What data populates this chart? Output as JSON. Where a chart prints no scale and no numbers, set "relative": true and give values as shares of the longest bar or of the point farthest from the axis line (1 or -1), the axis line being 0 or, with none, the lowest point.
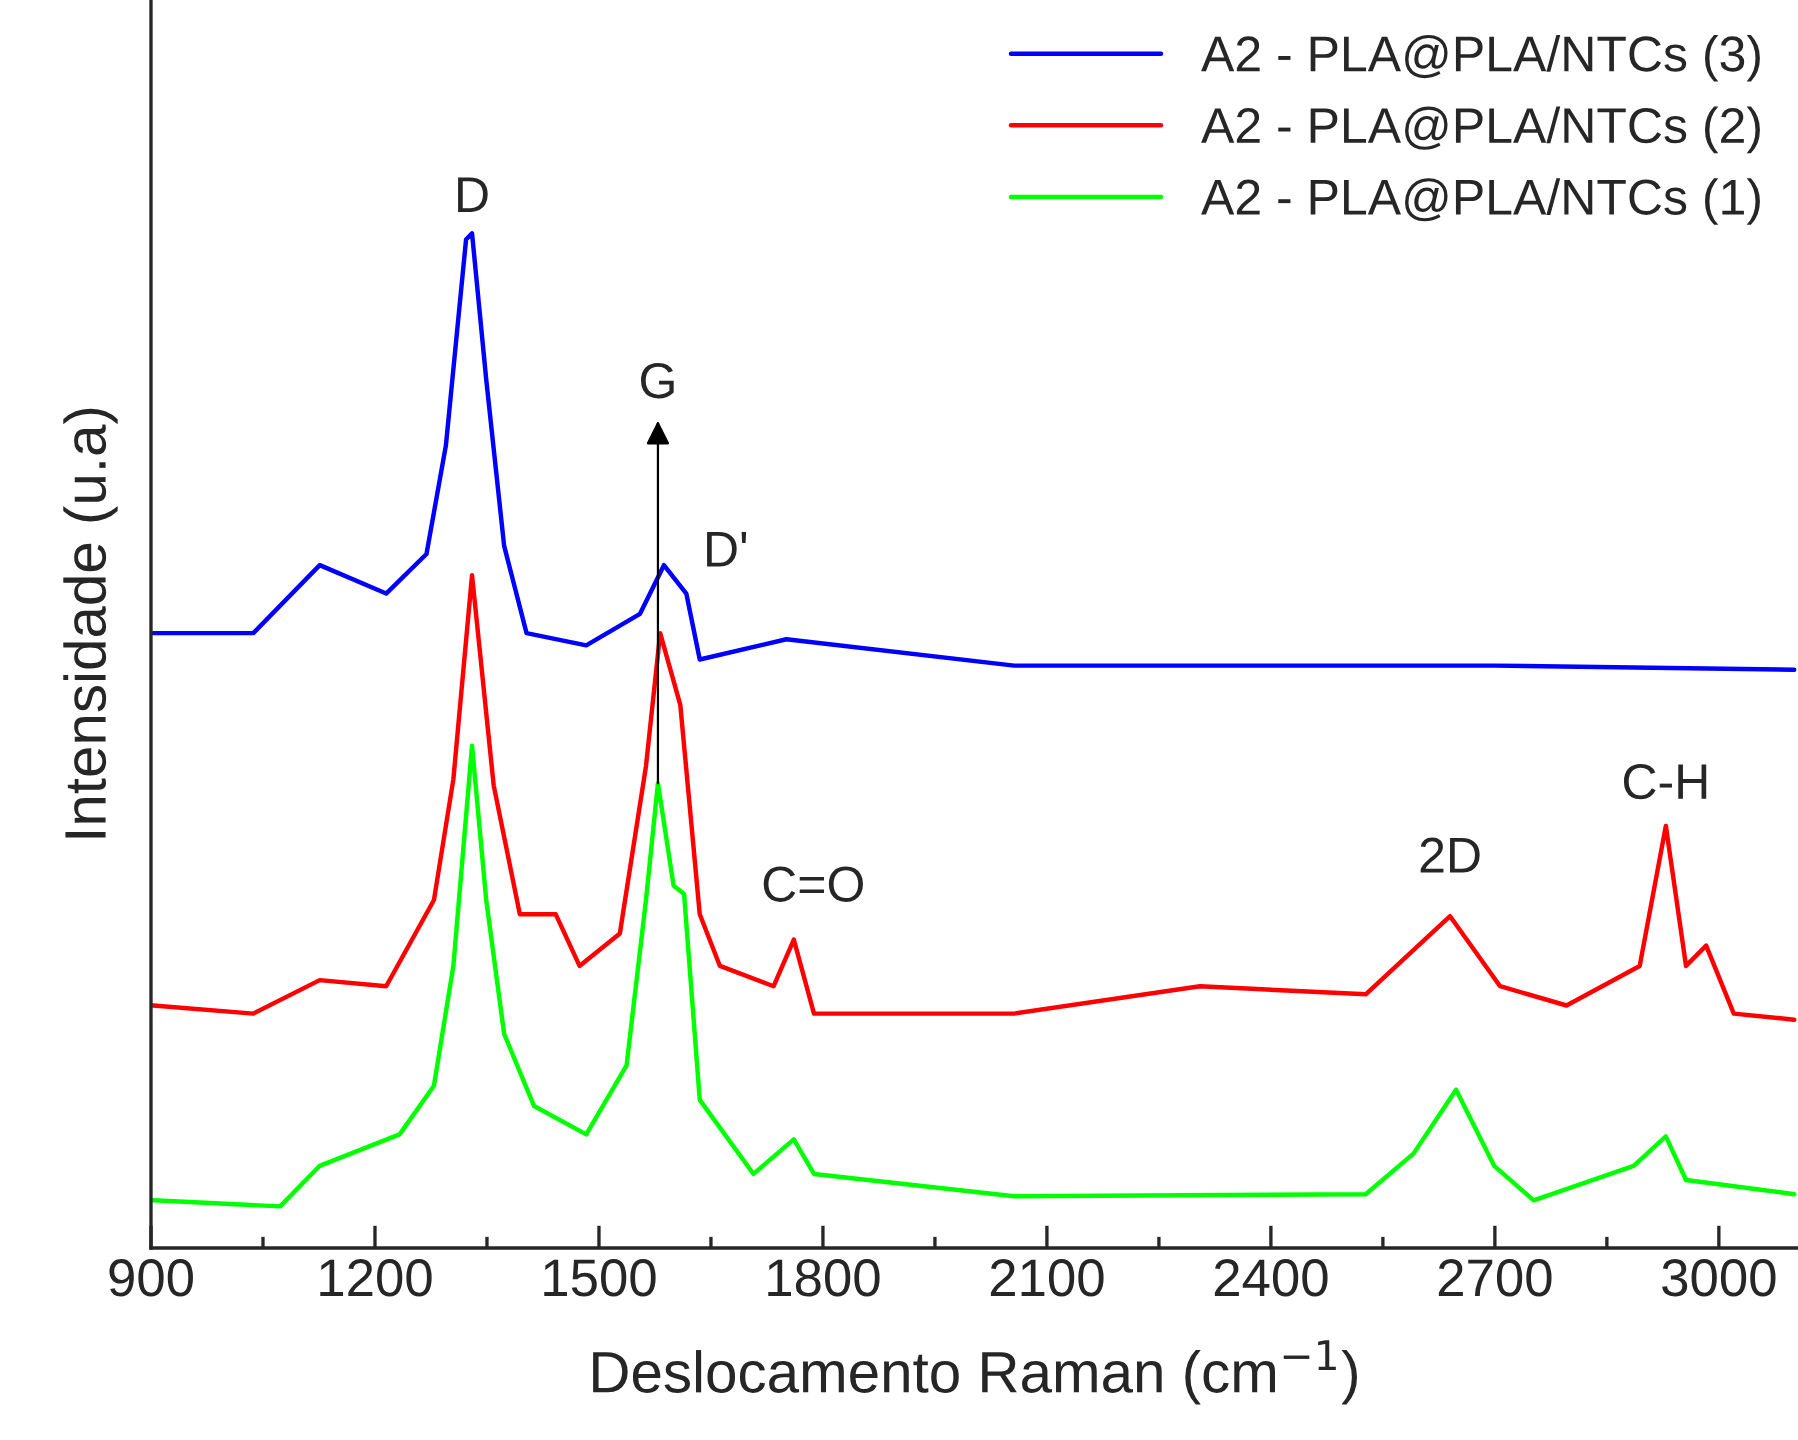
{
  "chart_data": {
    "type": "line",
    "relative": true,
    "xlabel": "Deslocamento Raman (cm$^{−1}$)",
    "ylabel": "Intensidade (u.a)",
    "xlim": [
      900,
      3106
    ],
    "xticks": [
      900,
      {
        "value": 1050,
        "label": null
      },
      1200,
      {
        "value": 1350,
        "label": null
      },
      1500,
      {
        "value": 1650,
        "label": null
      },
      1800,
      {
        "value": 1950,
        "label": null
      },
      2100,
      {
        "value": 2250,
        "label": null
      },
      2400,
      {
        "value": 2550,
        "label": null
      },
      2700,
      {
        "value": 2850,
        "label": null
      },
      3000
    ],
    "legend": "top right",
    "grid": false,
    "line_style": "solid",
    "marker": "none",
    "series": [
      {
        "name": "A2 - PLA@PLA/NTCs (3)",
        "color": "#0000ff",
        "x": [
          903,
          1037,
          1126,
          1215,
          1269,
          1295,
          1322,
          1330,
          1349,
          1373,
          1403,
          1483,
          1555,
          1587,
          1617,
          1635,
          1751,
          2056,
          2300,
          2700,
          3101
        ],
        "values": [
          0.606,
          0.606,
          0.673,
          0.645,
          0.684,
          0.791,
          0.994,
          1.0,
          0.856,
          0.692,
          0.606,
          0.594,
          0.625,
          0.673,
          0.645,
          0.58,
          0.6,
          0.574,
          0.574,
          0.574,
          0.57
        ]
      },
      {
        "name": "A2 - PLA@PLA/NTCs (2)",
        "color": "#ff0000",
        "x": [
          903,
          1037,
          1126,
          1215,
          1279,
          1305,
          1330,
          1359,
          1394,
          1442,
          1474,
          1528,
          1563,
          1582,
          1609,
          1635,
          1662,
          1734,
          1761,
          1788,
          2056,
          2305,
          2527,
          2640,
          2707,
          2796,
          2894,
          2929,
          2956,
          2983,
          3020,
          3101
        ],
        "values": [
          0.239,
          0.231,
          0.264,
          0.258,
          0.343,
          0.462,
          0.663,
          0.456,
          0.329,
          0.329,
          0.278,
          0.31,
          0.475,
          0.606,
          0.535,
          0.329,
          0.278,
          0.258,
          0.304,
          0.231,
          0.231,
          0.258,
          0.25,
          0.327,
          0.258,
          0.239,
          0.278,
          0.416,
          0.278,
          0.298,
          0.231,
          0.225
        ]
      },
      {
        "name": "A2 - PLA@PLA/NTCs (1)",
        "color": "#00ff00",
        "x": [
          903,
          1073,
          1126,
          1233,
          1279,
          1305,
          1330,
          1349,
          1373,
          1413,
          1483,
          1537,
          1563,
          1579,
          1600,
          1614,
          1635,
          1707,
          1761,
          1788,
          2056,
          2527,
          2591,
          2648,
          2699,
          2752,
          2886,
          2929,
          2956,
          3101
        ],
        "values": [
          0.047,
          0.041,
          0.081,
          0.112,
          0.16,
          0.278,
          0.495,
          0.343,
          0.211,
          0.14,
          0.112,
          0.18,
          0.343,
          0.458,
          0.357,
          0.349,
          0.146,
          0.073,
          0.107,
          0.073,
          0.051,
          0.053,
          0.093,
          0.156,
          0.081,
          0.047,
          0.081,
          0.11,
          0.067,
          0.053
        ]
      }
    ],
    "annotations": [
      {
        "text": "D",
        "x": 1330,
        "y": 1.0
      },
      {
        "text": "G",
        "x": 1579,
        "y": 0.458
      },
      {
        "text": "D'",
        "x": 1617,
        "y": 0.645
      },
      {
        "text": "C=O",
        "x": 1761,
        "y": 0.304
      },
      {
        "text": "2D",
        "x": 2640,
        "y": 0.327
      },
      {
        "text": "C-H",
        "x": 2929,
        "y": 0.416
      }
    ]
  }
}
